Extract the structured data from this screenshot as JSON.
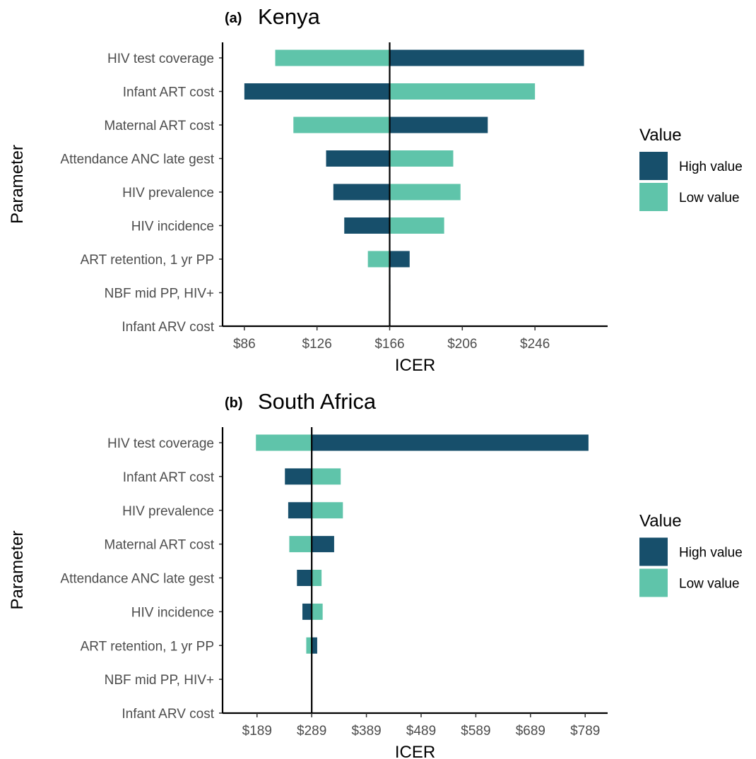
{
  "chart_data": [
    {
      "type": "bar",
      "orientation": "horizontal",
      "tag": "(a)",
      "title": "Kenya",
      "xlabel": "ICER",
      "ylabel": "Parameter",
      "baseline": 166,
      "xlim": [
        74,
        286
      ],
      "xticks": [
        86,
        126,
        166,
        206,
        246
      ],
      "xtick_labels": [
        "$86",
        "$126",
        "$166",
        "$206",
        "$246"
      ],
      "categories": [
        "HIV test coverage",
        "Infant ART cost",
        "Maternal ART cost",
        "Attendance ANC late gest",
        "HIV prevalence",
        "HIV incidence",
        "ART retention, 1 yr PP",
        "NBF mid PP, HIV+",
        "Infant ARV cost"
      ],
      "series": [
        {
          "name": "High value",
          "values": [
            273,
            86,
            220,
            131,
            135,
            141,
            177,
            166.4,
            166
          ]
        },
        {
          "name": "Low value",
          "values": [
            103,
            246,
            113,
            201,
            205,
            196,
            154,
            165.6,
            166
          ]
        }
      ],
      "legend": {
        "title": "Value",
        "position": "right"
      }
    },
    {
      "type": "bar",
      "orientation": "horizontal",
      "tag": "(b)",
      "title": "South Africa",
      "xlabel": "ICER",
      "ylabel": "Parameter",
      "baseline": 289,
      "xlim": [
        126,
        830
      ],
      "xticks": [
        189,
        289,
        389,
        489,
        589,
        689,
        789
      ],
      "xtick_labels": [
        "$189",
        "$289",
        "$389",
        "$489",
        "$589",
        "$689",
        "$789"
      ],
      "categories": [
        "HIV test coverage",
        "Infant ART cost",
        "HIV prevalence",
        "Maternal ART cost",
        "Attendance ANC late gest",
        "HIV incidence",
        "ART retention, 1 yr PP",
        "NBF mid PP, HIV+",
        "Infant ARV cost"
      ],
      "series": [
        {
          "name": "High value",
          "values": [
            795,
            240,
            246,
            330,
            262,
            272,
            299,
            290,
            289
          ]
        },
        {
          "name": "Low value",
          "values": [
            187,
            342,
            346,
            248,
            307,
            309,
            279,
            288,
            289
          ]
        }
      ],
      "legend": {
        "title": "Value",
        "position": "right"
      }
    }
  ],
  "colors": {
    "high": "#174f6b",
    "low": "#5fc4aa"
  }
}
